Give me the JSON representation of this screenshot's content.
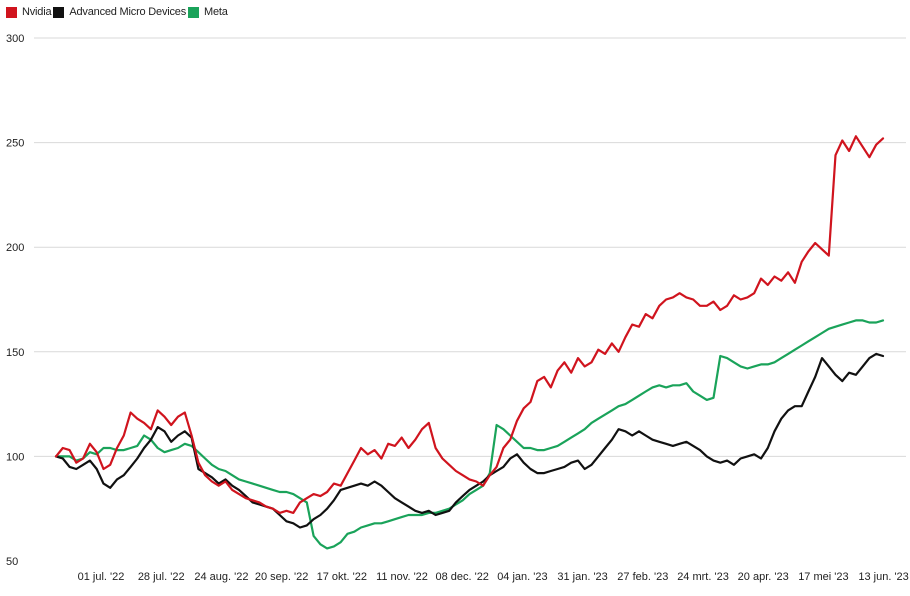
{
  "chart_data": {
    "type": "line",
    "title": "",
    "xlabel": "",
    "ylabel": "",
    "ylim": [
      50,
      300
    ],
    "yticks": [
      50,
      100,
      150,
      200,
      250,
      300
    ],
    "grid": "horizontal",
    "legend_position": "top-left",
    "x_tick_labels": [
      "01 jul. '22",
      "28 jul. '22",
      "24 aug. '22",
      "20 sep. '22",
      "17 okt. '22",
      "11 nov. '22",
      "08 dec. '22",
      "04 jan. '23",
      "31 jan. '23",
      "27 feb. '23",
      "24 mrt. '23",
      "20 apr. '23",
      "17 mei '23",
      "13 jun. '23"
    ],
    "series": [
      {
        "name": "Nvidia",
        "color": "#d0141e",
        "values": [
          100,
          104,
          103,
          97,
          99,
          106,
          102,
          94,
          96,
          104,
          110,
          121,
          118,
          116,
          113,
          122,
          119,
          115,
          119,
          121,
          110,
          97,
          91,
          88,
          86,
          88,
          84,
          82,
          80,
          79,
          78,
          76,
          75,
          73,
          74,
          73,
          78,
          80,
          82,
          81,
          83,
          87,
          86,
          92,
          98,
          104,
          101,
          103,
          99,
          106,
          105,
          109,
          104,
          108,
          113,
          116,
          104,
          99,
          96,
          93,
          91,
          89,
          88,
          86,
          91,
          95,
          104,
          108,
          117,
          123,
          126,
          136,
          138,
          133,
          141,
          145,
          140,
          147,
          143,
          145,
          151,
          149,
          154,
          150,
          157,
          163,
          162,
          168,
          166,
          172,
          175,
          176,
          178,
          176,
          175,
          172,
          172,
          174,
          170,
          172,
          177,
          175,
          176,
          178,
          185,
          182,
          186,
          184,
          188,
          183,
          193,
          198,
          202,
          199,
          196,
          244,
          251,
          246,
          253,
          248,
          243,
          249,
          252
        ]
      },
      {
        "name": "Advanced Micro Devices",
        "color": "#111111",
        "values": [
          100,
          99,
          95,
          94,
          96,
          98,
          94,
          87,
          85,
          89,
          91,
          95,
          99,
          104,
          108,
          114,
          112,
          107,
          110,
          112,
          109,
          94,
          92,
          90,
          87,
          89,
          86,
          84,
          81,
          78,
          77,
          76,
          75,
          72,
          69,
          68,
          66,
          67,
          70,
          72,
          75,
          79,
          84,
          85,
          86,
          87,
          86,
          88,
          86,
          83,
          80,
          78,
          76,
          74,
          73,
          74,
          72,
          73,
          74,
          78,
          81,
          84,
          86,
          88,
          91,
          93,
          95,
          99,
          101,
          97,
          94,
          92,
          92,
          93,
          94,
          95,
          97,
          98,
          94,
          96,
          100,
          104,
          108,
          113,
          112,
          110,
          112,
          110,
          108,
          107,
          106,
          105,
          106,
          107,
          105,
          103,
          100,
          98,
          97,
          98,
          96,
          99,
          100,
          101,
          99,
          104,
          112,
          118,
          122,
          124,
          124,
          131,
          138,
          147,
          143,
          139,
          136,
          140,
          139,
          143,
          147,
          149,
          148
        ]
      },
      {
        "name": "Meta",
        "color": "#1aa35a",
        "values": [
          100,
          100,
          100,
          98,
          99,
          102,
          101,
          104,
          104,
          103,
          103,
          104,
          105,
          110,
          108,
          104,
          102,
          103,
          104,
          106,
          105,
          102,
          99,
          96,
          94,
          93,
          91,
          89,
          88,
          87,
          86,
          85,
          84,
          83,
          83,
          82,
          80,
          78,
          62,
          58,
          56,
          57,
          59,
          63,
          64,
          66,
          67,
          68,
          68,
          69,
          70,
          71,
          72,
          72,
          72,
          73,
          73,
          74,
          75,
          77,
          79,
          82,
          84,
          86,
          92,
          115,
          113,
          110,
          107,
          104,
          104,
          103,
          103,
          104,
          105,
          107,
          109,
          111,
          113,
          116,
          118,
          120,
          122,
          124,
          125,
          127,
          129,
          131,
          133,
          134,
          133,
          134,
          134,
          135,
          131,
          129,
          127,
          128,
          148,
          147,
          145,
          143,
          142,
          143,
          144,
          144,
          145,
          147,
          149,
          151,
          153,
          155,
          157,
          159,
          161,
          162,
          163,
          164,
          165,
          165,
          164,
          164,
          165
        ]
      }
    ]
  }
}
